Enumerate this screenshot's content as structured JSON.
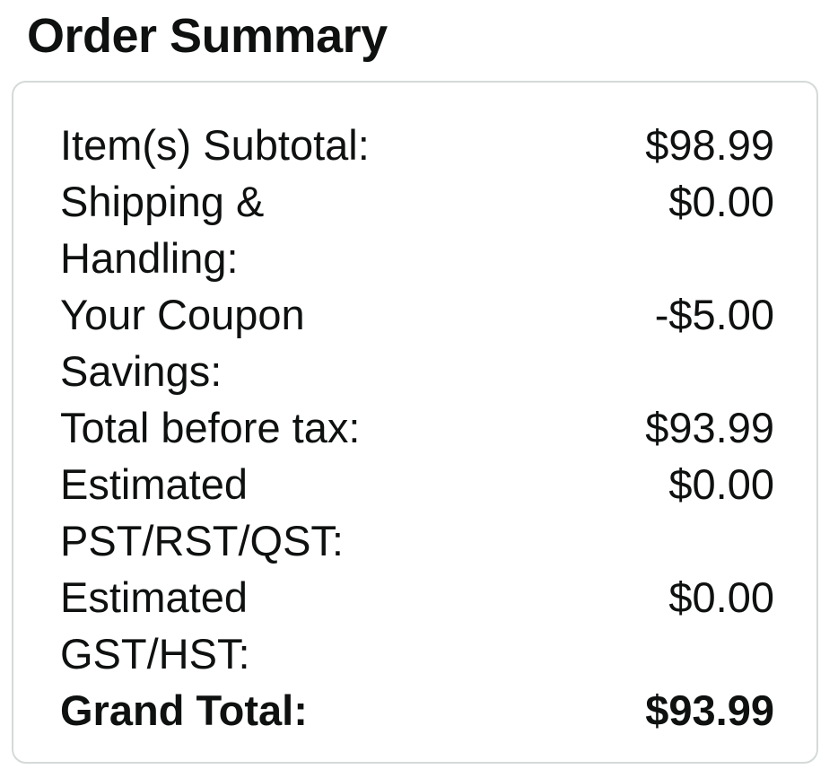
{
  "title": "Order Summary",
  "card": {
    "rows": [
      {
        "label": "Item(s) Subtotal:",
        "value": "$98.99"
      },
      {
        "label": "Shipping &\nHandling:",
        "value": "$0.00"
      },
      {
        "label": "Your Coupon\nSavings:",
        "value": "-$5.00"
      },
      {
        "label": "Total before tax:",
        "value": "$93.99"
      },
      {
        "label": "Estimated\nPST/RST/QST:",
        "value": "$0.00"
      },
      {
        "label": "Estimated\nGST/HST:",
        "value": "$0.00"
      },
      {
        "label": "Grand Total:",
        "value": "$93.99"
      }
    ]
  },
  "colors": {
    "text": "#0f1111",
    "card_border": "#d5d9d9",
    "background": "#ffffff"
  }
}
